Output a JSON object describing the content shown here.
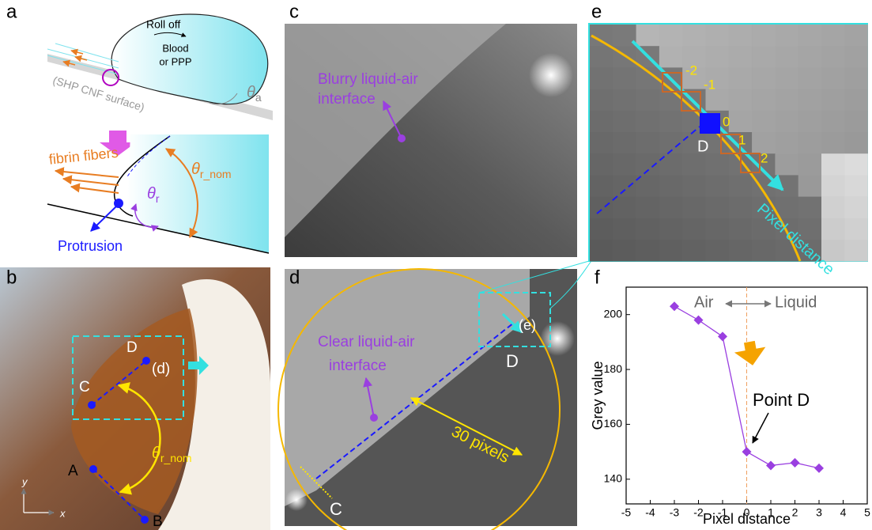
{
  "panels": {
    "a": {
      "label": "a",
      "roll_off": "Roll off",
      "blood": "Blood",
      "or_ppp": "or PPP",
      "surface": "(SHP CNF surface)",
      "theta_a": {
        "symbol": "θ",
        "sub": "a"
      },
      "fibrin": "fibrin fibers",
      "theta_r": {
        "symbol": "θ",
        "sub": "r"
      },
      "theta_r_nom": {
        "symbol": "θ",
        "sub": "r_nom"
      },
      "protrusion": "Protrusion"
    },
    "b": {
      "label": "b",
      "point_d": "D",
      "point_c": "C",
      "inset": "(d)",
      "theta_r_nom": {
        "symbol": "θ",
        "sub": "r_nom"
      },
      "point_a": "A",
      "point_b": "B",
      "axis_y": "y",
      "axis_x": "x"
    },
    "c": {
      "label": "c",
      "note_line1": "Blurry liquid-air",
      "note_line2": "interface"
    },
    "d": {
      "label": "d",
      "note_line1": "Clear liquid-air",
      "note_line2": "interface",
      "radius": "30 pixels",
      "inset": "(e)",
      "point_d": "D",
      "point_c": "C"
    },
    "e": {
      "label": "e",
      "pixels": [
        "-2",
        "-1",
        "0",
        "1",
        "2"
      ],
      "point_d": "D",
      "axis": "Pixel distance"
    }
  },
  "chart_data": {
    "type": "line",
    "panel_label": "f",
    "x_label": "Pixel distance",
    "y_label": "Grey value",
    "x": [
      -3,
      -2,
      -1,
      0,
      1,
      2,
      3
    ],
    "values": [
      203,
      198,
      192,
      150,
      145,
      146,
      144
    ],
    "color": "#9a3fe0",
    "xlim": [
      -5,
      5
    ],
    "xticks": [
      -5,
      -4,
      -3,
      -2,
      -1,
      0,
      1,
      2,
      3,
      4,
      5
    ],
    "ylim": [
      131,
      210
    ],
    "yticks": [
      140,
      160,
      180,
      200
    ],
    "vline": 0,
    "vline_color": "#f0a060",
    "annotations": {
      "air": "Air",
      "liquid": "Liquid",
      "point": "Point D"
    }
  }
}
